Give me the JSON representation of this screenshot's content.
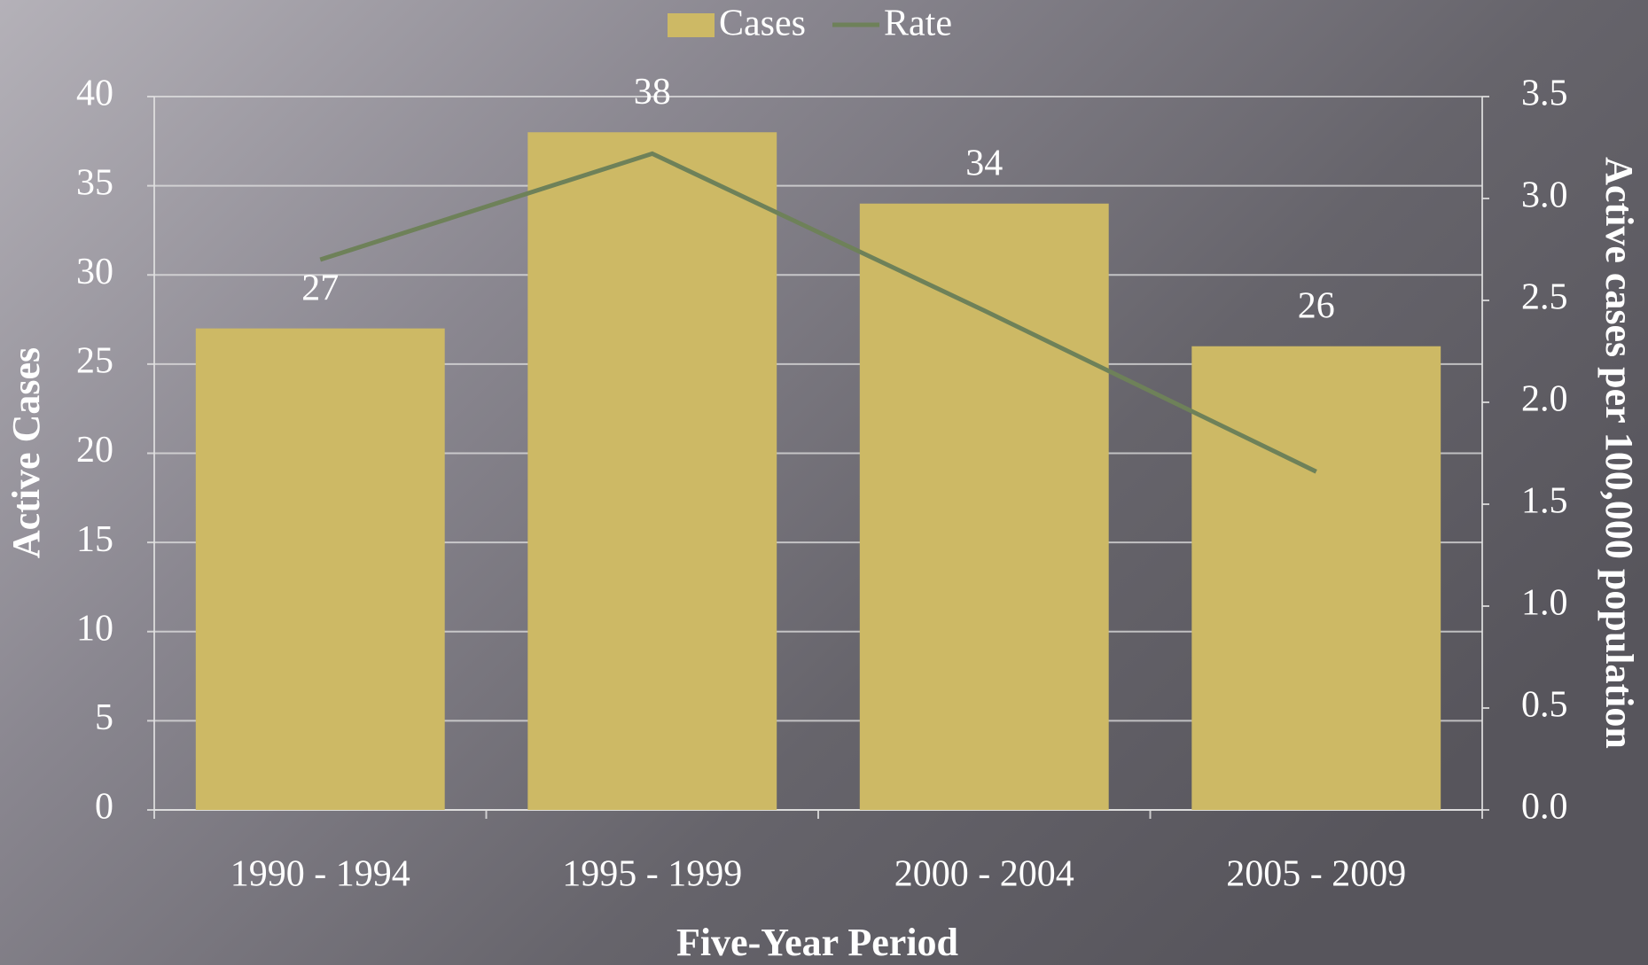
{
  "chart_data": {
    "type": "bar",
    "categories": [
      "1990 - 1994",
      "1995 - 1999",
      "2000 - 2004",
      "2005 - 2009"
    ],
    "series": [
      {
        "name": "Cases",
        "type": "bar",
        "color": "#cdb965",
        "values": [
          27,
          38,
          34,
          26
        ]
      },
      {
        "name": "Rate",
        "type": "line",
        "axis": "y2",
        "color": "#6e8159",
        "values": [
          2.7,
          3.22,
          2.45,
          1.66
        ]
      }
    ],
    "xlabel": "Five-Year Period",
    "ylabel": "Active Cases",
    "y2label": "Active cases per 100,000 population",
    "ylim": [
      0,
      40
    ],
    "yticks": [
      0,
      5,
      10,
      15,
      20,
      25,
      30,
      35,
      40
    ],
    "y2lim": [
      0,
      3.5
    ],
    "y2ticks": [
      {
        "value": 0,
        "label": "0.0"
      },
      0.5,
      {
        "value": 1,
        "label": "1.0"
      },
      1.5,
      {
        "value": 2,
        "label": "2.0"
      },
      2.5,
      {
        "value": 3,
        "label": "3.0"
      },
      3.5
    ],
    "grid": true,
    "legend": "top"
  }
}
